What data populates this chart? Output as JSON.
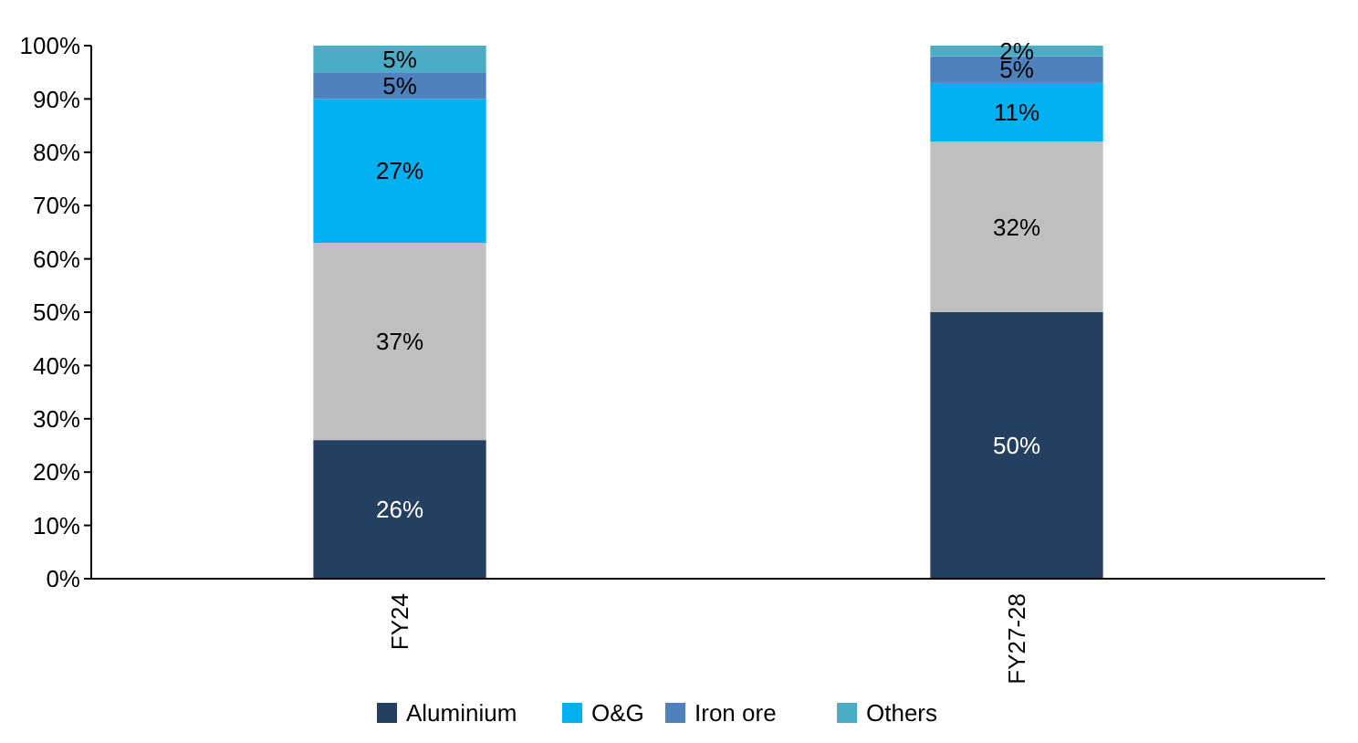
{
  "chart_data": {
    "type": "bar",
    "stacked": true,
    "categories": [
      "FY24",
      "FY27-28"
    ],
    "series": [
      {
        "name": "Aluminium",
        "color": "#243f60",
        "values": [
          26,
          50
        ],
        "value_labels": [
          "26%",
          "50%"
        ]
      },
      {
        "color": "#bfbfbf",
        "values": [
          37,
          32
        ],
        "value_labels": [
          "37%",
          "32%"
        ]
      },
      {
        "name": "O&G",
        "color": "#00b0f0",
        "values": [
          27,
          11
        ],
        "value_labels": [
          "27%",
          "11%"
        ]
      },
      {
        "name": "Iron ore",
        "color": "#4f81bd",
        "values": [
          5,
          5
        ],
        "value_labels": [
          "5%",
          "5%"
        ]
      },
      {
        "name": "Others",
        "color": "#4bacc6",
        "values": [
          5,
          2
        ],
        "value_labels": [
          "5%",
          "2%"
        ]
      }
    ],
    "ylim": [
      0,
      100
    ],
    "yticks": [
      {
        "value": 0,
        "label": "0%"
      },
      {
        "value": 10,
        "label": "10%"
      },
      {
        "value": 20,
        "label": "20%"
      },
      {
        "value": 30,
        "label": "30%"
      },
      {
        "value": 40,
        "label": "40%"
      },
      {
        "value": 50,
        "label": "50%"
      },
      {
        "value": 60,
        "label": "60%"
      },
      {
        "value": 70,
        "label": "70%"
      },
      {
        "value": 80,
        "label": "80%"
      },
      {
        "value": 90,
        "label": "90%"
      },
      {
        "value": 100,
        "label": "100%"
      }
    ],
    "grid": false,
    "legend": "bottom"
  }
}
